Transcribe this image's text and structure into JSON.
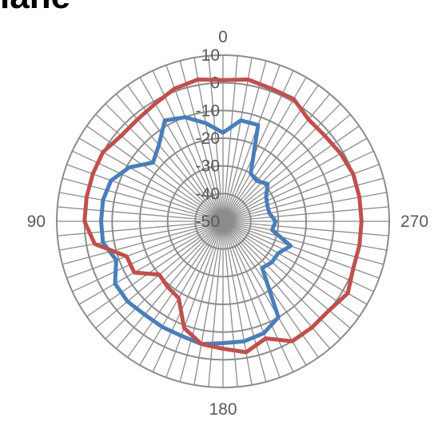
{
  "chart_data": {
    "type": "radar",
    "title": "lane",
    "angle_labels": [
      "0",
      "90",
      "180",
      "270"
    ],
    "radial_ticks": [
      10,
      0,
      -10,
      -20,
      -30,
      -40,
      -50
    ],
    "rlim": [
      -50,
      10
    ],
    "angle_step": 5,
    "angle_direction": "counterclockwise",
    "grid": true,
    "series": [
      {
        "color": "#4a7ebb",
        "angles": [
          0,
          10,
          20,
          30,
          40,
          50,
          60,
          70,
          80,
          90,
          100,
          110,
          120,
          130,
          140,
          150,
          160,
          170,
          180,
          190,
          200,
          210,
          220,
          230,
          240,
          250,
          260,
          270,
          280,
          290,
          300,
          310,
          320,
          330,
          340,
          350
        ],
        "values": [
          -18,
          -14,
          -10,
          -8,
          -14,
          -17,
          -11,
          -7,
          -6,
          -6,
          -6,
          -9,
          -5,
          -5,
          -6,
          -6,
          -6,
          -5,
          -6,
          -6,
          -7,
          -10,
          -28,
          -27,
          -27,
          -24,
          -32,
          -31,
          -33,
          -33,
          -32,
          -29,
          -31,
          -30,
          -13,
          -13
        ]
      },
      {
        "color": "#c0504d",
        "angles": [
          0,
          10,
          20,
          30,
          40,
          50,
          60,
          70,
          80,
          90,
          100,
          110,
          120,
          130,
          140,
          150,
          160,
          170,
          180,
          190,
          200,
          210,
          220,
          230,
          240,
          250,
          260,
          270,
          280,
          290,
          300,
          310,
          320,
          330,
          340,
          350
        ],
        "values": [
          1,
          2,
          1,
          -1,
          -2,
          -2,
          0,
          0,
          0,
          0,
          -3,
          -13,
          -13,
          -20,
          -19,
          -18,
          -9,
          -5,
          -4,
          -2,
          -5,
          0,
          0,
          0,
          2,
          0,
          0,
          0,
          0,
          0,
          -1,
          -2,
          -2,
          1,
          1,
          2
        ]
      }
    ]
  }
}
